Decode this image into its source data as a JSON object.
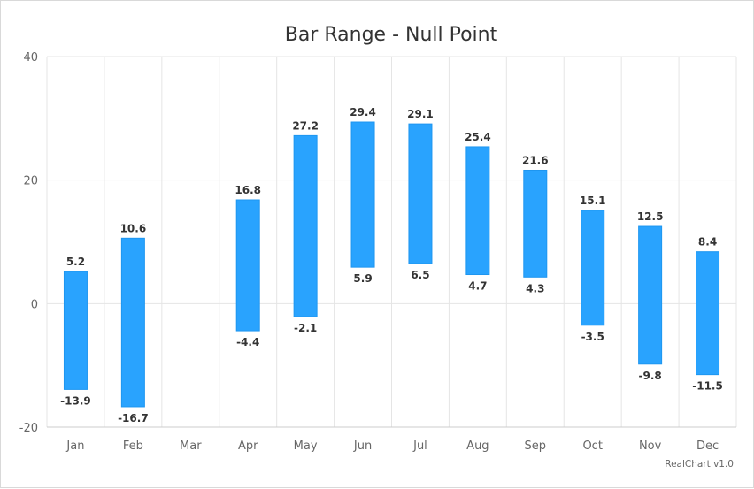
{
  "chart_data": {
    "type": "bar",
    "title": "Bar Range - Null Point",
    "credit": "RealChart v1.0",
    "categories": [
      "Jan",
      "Feb",
      "Mar",
      "Apr",
      "May",
      "Jun",
      "Jul",
      "Aug",
      "Sep",
      "Oct",
      "Nov",
      "Dec"
    ],
    "ranges": [
      {
        "category": "Jan",
        "low": -13.9,
        "high": 5.2,
        "low_label": "-13.9",
        "high_label": "5.2"
      },
      {
        "category": "Feb",
        "low": -16.7,
        "high": 10.6,
        "low_label": "-16.7",
        "high_label": "10.6"
      },
      {
        "category": "Mar",
        "low": null,
        "high": null,
        "low_label": null,
        "high_label": null
      },
      {
        "category": "Apr",
        "low": -4.4,
        "high": 16.8,
        "low_label": "-4.4",
        "high_label": "16.8"
      },
      {
        "category": "May",
        "low": -2.1,
        "high": 27.2,
        "low_label": "-2.1",
        "high_label": "27.2"
      },
      {
        "category": "Jun",
        "low": 5.9,
        "high": 29.4,
        "low_label": "5.9",
        "high_label": "29.4"
      },
      {
        "category": "Jul",
        "low": 6.5,
        "high": 29.1,
        "low_label": "6.5",
        "high_label": "29.1"
      },
      {
        "category": "Aug",
        "low": 4.7,
        "high": 25.4,
        "low_label": "4.7",
        "high_label": "25.4"
      },
      {
        "category": "Sep",
        "low": 4.3,
        "high": 21.6,
        "low_label": "4.3",
        "high_label": "21.6"
      },
      {
        "category": "Oct",
        "low": -3.5,
        "high": 15.1,
        "low_label": "-3.5",
        "high_label": "15.1"
      },
      {
        "category": "Nov",
        "low": -9.8,
        "high": 12.5,
        "low_label": "-9.8",
        "high_label": "12.5"
      },
      {
        "category": "Dec",
        "low": -11.5,
        "high": 8.4,
        "low_label": "-11.5",
        "high_label": "8.4"
      }
    ],
    "xlabel": "",
    "ylabel": "",
    "ylim": [
      -20,
      40
    ],
    "yticks": [
      -20,
      0,
      20,
      40
    ],
    "ytick_labels": [
      "-20",
      "0",
      "20",
      "40"
    ],
    "grid": true,
    "bar_color": "#29a3fe",
    "bar_stroke_color": "#1e96f0",
    "grid_color": "#e5e5e5"
  }
}
